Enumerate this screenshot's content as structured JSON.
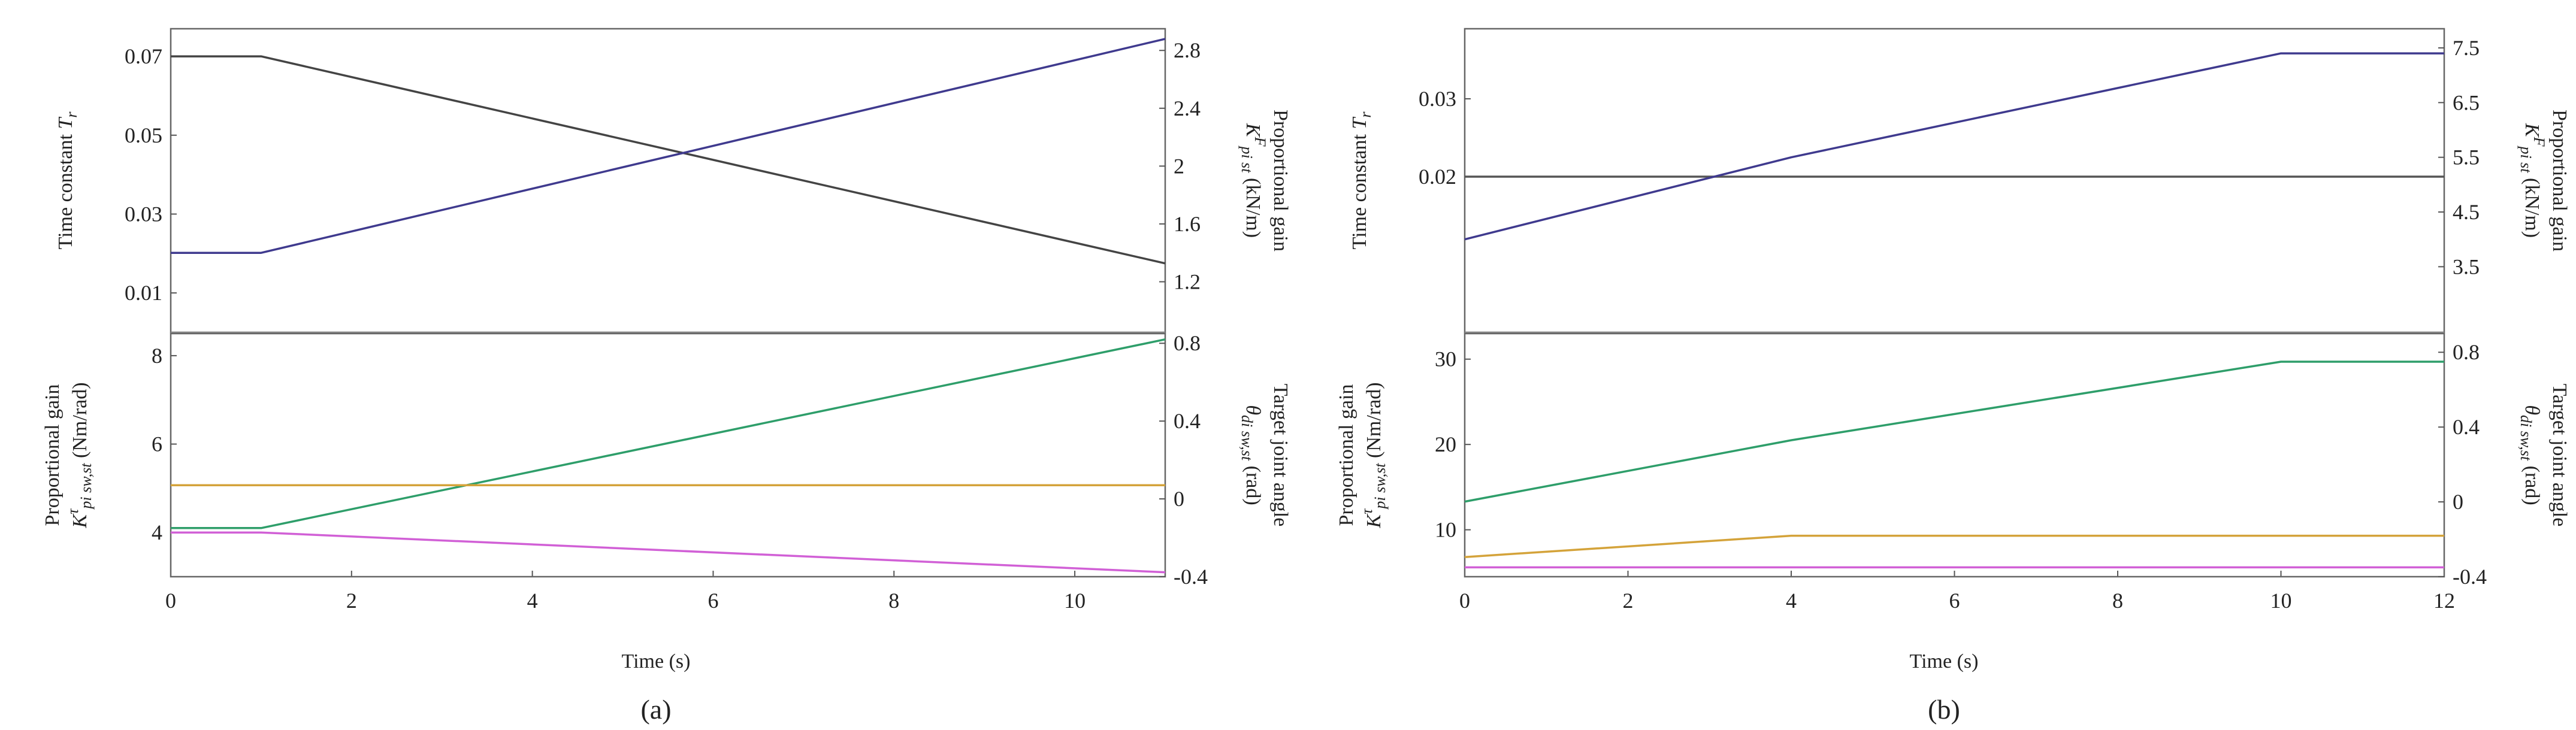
{
  "chart_data": [
    {
      "type": "line",
      "caption": "(a)",
      "xlabel": "Time (s)",
      "xlim": [
        0,
        11
      ],
      "xticks": [
        "0",
        "2",
        "4",
        "6",
        "8",
        "10"
      ],
      "top": {
        "left_ylabel": "Time constant T_r",
        "left_ylabel_parts": {
          "main": "Time constant ",
          "sym": "T",
          "sub": "r"
        },
        "left_ylim": [
          0,
          0.077
        ],
        "left_ticks": [
          "0.01",
          "0.03",
          "0.05",
          "0.07"
        ],
        "right_ylabel_line1": "Proportional gain",
        "right_ylabel_line2": {
          "sym": "K",
          "sup": "F",
          "sub": "pi st",
          "unit": " (kN/m)"
        },
        "right_ylim": [
          0.85,
          2.95
        ],
        "right_ticks": [
          "1.2",
          "1.6",
          "2",
          "2.4",
          "2.8"
        ],
        "series": [
          {
            "name": "Time constant T_r",
            "axis": "left",
            "color": "#444444",
            "x": [
              0,
              1,
              11
            ],
            "y": [
              0.07,
              0.07,
              0.0175
            ]
          },
          {
            "name": "Proportional gain K^F_pi st",
            "axis": "right",
            "color": "#3f3a8e",
            "x": [
              0,
              1,
              11
            ],
            "y": [
              1.4,
              1.4,
              2.88
            ]
          }
        ],
        "hlines": [
          {
            "axis": "left",
            "y": 0.0,
            "color": "#888888"
          }
        ]
      },
      "bottom": {
        "left_ylabel_line1": "Proportional gain",
        "left_ylabel_line2": {
          "sym": "K",
          "sup": "τ",
          "sub": "pi sw,st",
          "unit": " (Nm/rad)"
        },
        "left_ylim": [
          3.0,
          8.5
        ],
        "left_ticks": [
          "4",
          "6",
          "8"
        ],
        "right_ylabel_line1": "Target joint angle",
        "right_ylabel_line2": {
          "sym": "θ",
          "sub": "di sw,st",
          "unit": " (rad)"
        },
        "right_ylim": [
          -0.4,
          0.85
        ],
        "right_ticks": [
          "-0.4",
          "0",
          "0.4",
          "0.8"
        ],
        "series": [
          {
            "name": "Target joint angle (green)",
            "axis": "right",
            "color": "#2e9e6a",
            "x": [
              0,
              1,
              11
            ],
            "y": [
              -0.15,
              -0.15,
              0.82
            ]
          },
          {
            "name": "Target joint angle (yellow)",
            "axis": "right",
            "color": "#d4a33a",
            "x": [
              0,
              11
            ],
            "y": [
              0.07,
              0.07
            ]
          },
          {
            "name": "Proportional gain (magenta)",
            "axis": "left",
            "color": "#d160d6",
            "x": [
              0,
              1,
              11
            ],
            "y": [
              4.0,
              4.0,
              3.1
            ]
          }
        ]
      }
    },
    {
      "type": "line",
      "caption": "(b)",
      "xlabel": "Time (s)",
      "xlim": [
        0,
        12
      ],
      "xticks": [
        "0",
        "2",
        "4",
        "6",
        "8",
        "10",
        "12"
      ],
      "top": {
        "left_ylabel": "Time constant T_r",
        "left_ylabel_parts": {
          "main": "Time constant ",
          "sym": "T",
          "sub": "r"
        },
        "left_ylim": [
          0.0,
          0.039
        ],
        "left_ticks": [
          "0.02",
          "0.03"
        ],
        "right_ylabel_line1": "Proportional gain",
        "right_ylabel_line2": {
          "sym": "K",
          "sup": "F",
          "sub": "pi st",
          "unit": " (kN/m)"
        },
        "right_ylim": [
          2.3,
          7.85
        ],
        "right_ticks": [
          "3.5",
          "4.5",
          "5.5",
          "6.5",
          "7.5"
        ],
        "series": [
          {
            "name": "Time constant T_r",
            "axis": "left",
            "color": "#555555",
            "x": [
              0,
              12
            ],
            "y": [
              0.02,
              0.02
            ]
          },
          {
            "name": "Proportional gain K^F_pi st",
            "axis": "right",
            "color": "#3f3a8e",
            "x": [
              0,
              4,
              10,
              12
            ],
            "y": [
              4.0,
              5.5,
              7.4,
              7.4
            ]
          }
        ],
        "hlines": [
          {
            "axis": "left",
            "y": 0.0,
            "color": "#888888"
          }
        ]
      },
      "bottom": {
        "left_ylabel_line1": "Proportional gain",
        "left_ylabel_line2": {
          "sym": "K",
          "sup": "τ",
          "sub": "pi sw,st",
          "unit": " (Nm/rad)"
        },
        "left_ylim": [
          4.5,
          33.0
        ],
        "left_ticks": [
          "10",
          "20",
          "30"
        ],
        "right_ylabel_line1": "Target joint angle",
        "right_ylabel_line2": {
          "sym": "θ",
          "sub": "di sw,st",
          "unit": " (rad)"
        },
        "right_ylim": [
          -0.4,
          0.9
        ],
        "right_ticks": [
          "-0.4",
          "0",
          "0.4",
          "0.8"
        ],
        "series": [
          {
            "name": "Proportional gain (green)",
            "axis": "left",
            "color": "#2e9e6a",
            "x": [
              0,
              4,
              10,
              12
            ],
            "y": [
              13.3,
              20.5,
              29.7,
              29.7
            ]
          },
          {
            "name": "Proportional gain (yellow)",
            "axis": "left",
            "color": "#d4a33a",
            "x": [
              0,
              4,
              12
            ],
            "y": [
              6.8,
              9.3,
              9.3
            ]
          },
          {
            "name": "Target joint angle (magenta)",
            "axis": "right",
            "color": "#d160d6",
            "x": [
              0,
              12
            ],
            "y": [
              -0.35,
              -0.35
            ]
          }
        ]
      }
    }
  ]
}
